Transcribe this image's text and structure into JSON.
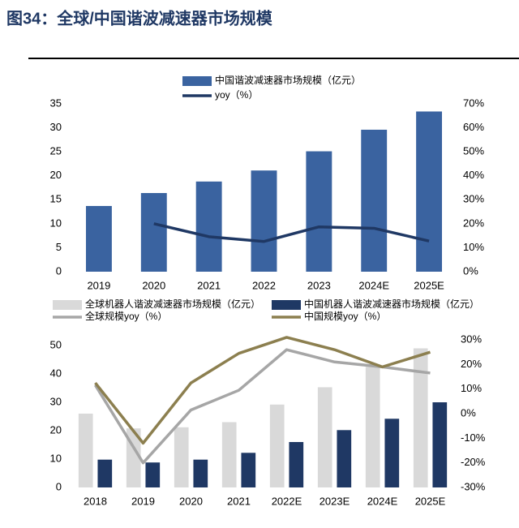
{
  "figure_title": "图34：全球/中国谐波减速器市场规模",
  "chart_data": [
    {
      "type": "combo",
      "categories": [
        "2019",
        "2020",
        "2021",
        "2022",
        "2023",
        "2024E",
        "2025E"
      ],
      "series": [
        {
          "name": "中国谐波减速器市场规模（亿元）",
          "type": "bar",
          "color": "#3a63a0",
          "values": [
            13.7,
            16.4,
            18.8,
            21.1,
            25.1,
            29.6,
            33.4
          ]
        },
        {
          "name": "yoy（%）",
          "type": "line",
          "axis": "y2",
          "color": "#1f3864",
          "values": [
            null,
            20.0,
            14.6,
            12.6,
            18.7,
            18.1,
            12.8
          ]
        }
      ],
      "ylim": [
        0,
        35
      ],
      "yticks": [
        0,
        5,
        10,
        15,
        20,
        25,
        30,
        35
      ],
      "y2lim": [
        0,
        70
      ],
      "y2ticks": [
        {
          "value": 0,
          "label": "0%"
        },
        {
          "value": 10,
          "label": "10%"
        },
        {
          "value": 20,
          "label": "20%"
        },
        {
          "value": 30,
          "label": "30%"
        },
        {
          "value": 40,
          "label": "40%"
        },
        {
          "value": 50,
          "label": "50%"
        },
        {
          "value": 60,
          "label": "60%"
        },
        {
          "value": 70,
          "label": "70%"
        }
      ],
      "grid": false
    },
    {
      "type": "combo",
      "categories": [
        "2018",
        "2019",
        "2020",
        "2021",
        "2022E",
        "2023E",
        "2024E",
        "2025E"
      ],
      "series": [
        {
          "name": "全球机器人谐波减速器市场规模（亿元）",
          "type": "bar",
          "color": "#d9d9d9",
          "values": [
            26.0,
            20.8,
            21.2,
            23.0,
            29.2,
            35.3,
            42.5,
            49.0
          ]
        },
        {
          "name": "中国机器人谐波减速器市场规模（亿元）",
          "type": "bar",
          "color": "#1f3864",
          "values": [
            9.8,
            8.8,
            9.8,
            12.2,
            16.0,
            20.2,
            24.2,
            30.0
          ]
        },
        {
          "name": "全球规模yoy（%）",
          "type": "line",
          "axis": "y2",
          "color": "#a6a6a6",
          "values": [
            11.6,
            -20.0,
            1.5,
            9.5,
            26.0,
            21.0,
            19.0,
            16.5
          ]
        },
        {
          "name": "中国规模yoy（%）",
          "type": "line",
          "axis": "y2",
          "color": "#8c7f4f",
          "values": [
            12.5,
            -12.0,
            12.5,
            24.5,
            31.0,
            26.0,
            19.0,
            25.0
          ]
        }
      ],
      "ylim": [
        0,
        52
      ],
      "yticks": [
        0,
        10,
        20,
        30,
        40,
        50
      ],
      "y2lim": [
        -30,
        30
      ],
      "y2ticks": [
        {
          "value": -30,
          "label": "-30%"
        },
        {
          "value": -20,
          "label": "-20%"
        },
        {
          "value": -10,
          "label": "-10%"
        },
        {
          "value": 0,
          "label": "0%"
        },
        {
          "value": 10,
          "label": "10%"
        },
        {
          "value": 20,
          "label": "20%"
        },
        {
          "value": 30,
          "label": "30%"
        }
      ],
      "grid": false
    }
  ]
}
